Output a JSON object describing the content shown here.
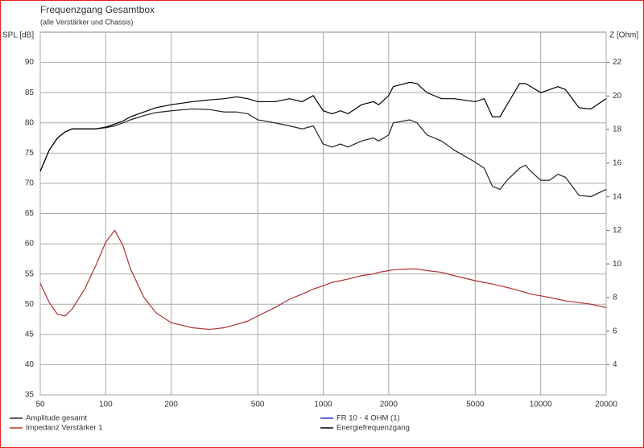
{
  "chart_data": {
    "type": "line",
    "title": "Frequenzgang Gesamtbox",
    "subtitle": "(alle Verstärker und Chassis)",
    "ylabel": "SPL [dB]",
    "y2label": "Z [Ohm]",
    "log_x": true,
    "grid": true,
    "x": [
      50,
      55,
      60,
      65,
      70,
      80,
      90,
      100,
      110,
      120,
      130,
      150,
      170,
      200,
      250,
      300,
      350,
      400,
      450,
      500,
      600,
      700,
      800,
      900,
      1000,
      1100,
      1200,
      1300,
      1500,
      1700,
      1800,
      2000,
      2100,
      2500,
      2700,
      3000,
      3500,
      4000,
      5000,
      5500,
      6000,
      6500,
      7000,
      8000,
      8500,
      9000,
      10000,
      11000,
      12000,
      13000,
      15000,
      17000,
      20000
    ],
    "xlim": [
      50,
      20000
    ],
    "xticks": [
      50,
      100,
      200,
      500,
      1000,
      2000,
      5000,
      10000,
      20000
    ],
    "ylim": [
      35,
      95
    ],
    "yticks": [
      35,
      40,
      45,
      50,
      55,
      60,
      65,
      70,
      75,
      80,
      85,
      90
    ],
    "y2lim": [
      2.2,
      23.8
    ],
    "y2ticks": [
      4,
      6,
      8,
      10,
      12,
      14,
      16,
      18,
      20,
      22
    ],
    "series": [
      {
        "name": "Amplitude gesamt",
        "color": "#2a2020",
        "values": [
          72,
          75.5,
          77.5,
          78.5,
          79,
          79,
          79,
          79.2,
          79.5,
          80,
          80.5,
          81.2,
          81.7,
          82,
          82.3,
          82.2,
          81.8,
          81.8,
          81.5,
          80.5,
          80,
          79.5,
          79,
          79.5,
          76.5,
          76,
          76.5,
          76,
          77,
          77.5,
          77,
          78,
          80,
          80.5,
          80,
          78,
          77,
          75.5,
          73.5,
          72.5,
          69.5,
          69,
          70.5,
          72.5,
          73,
          72,
          70.5,
          70.5,
          71.5,
          71,
          68,
          67.8,
          69
        ]
      },
      {
        "name": "Impedanz Verstärker 1",
        "color": "#b03030",
        "axis": "y2",
        "values": [
          8.85,
          7.7,
          7.0,
          6.9,
          7.3,
          8.5,
          9.9,
          11.3,
          12.0,
          11.1,
          9.7,
          8.0,
          7.1,
          6.5,
          6.2,
          6.1,
          6.2,
          6.4,
          6.6,
          6.9,
          7.4,
          7.9,
          8.2,
          8.5,
          8.7,
          8.9,
          9.0,
          9.1,
          9.3,
          9.4,
          9.5,
          9.6,
          9.65,
          9.7,
          9.7,
          9.6,
          9.5,
          9.3,
          9.0,
          8.9,
          8.8,
          8.7,
          8.6,
          8.4,
          8.3,
          8.2,
          8.1,
          8.0,
          7.9,
          7.8,
          7.7,
          7.6,
          7.4
        ]
      },
      {
        "name": "FR 10 - 4 OHM (1)",
        "color": "#3030c0",
        "values": [
          null,
          null,
          null,
          null,
          null,
          null,
          null,
          null,
          null,
          null,
          null,
          null,
          null,
          null,
          null,
          null,
          null,
          null,
          null,
          null,
          null,
          null,
          null,
          null,
          null,
          null,
          null,
          null,
          null,
          null,
          null,
          null,
          null,
          null,
          null,
          null,
          null,
          null,
          null,
          null,
          null,
          null,
          null,
          null,
          null,
          null,
          null,
          null,
          null,
          null,
          null,
          null,
          null
        ]
      },
      {
        "name": "Energiefrequenzgang",
        "color": "#000000",
        "values": [
          72,
          75.5,
          77.5,
          78.5,
          79,
          79,
          79,
          79.3,
          79.8,
          80.3,
          81,
          81.8,
          82.5,
          83,
          83.5,
          83.8,
          84,
          84.3,
          84,
          83.5,
          83.5,
          84,
          83.5,
          84.5,
          82,
          81.5,
          82,
          81.5,
          83,
          83.5,
          83,
          84.5,
          86,
          86.7,
          86.5,
          85,
          84,
          84,
          83.5,
          84,
          81,
          81,
          83,
          86.5,
          86.5,
          86,
          85,
          85.5,
          86,
          85.5,
          82.5,
          82.3,
          84
        ]
      }
    ]
  }
}
